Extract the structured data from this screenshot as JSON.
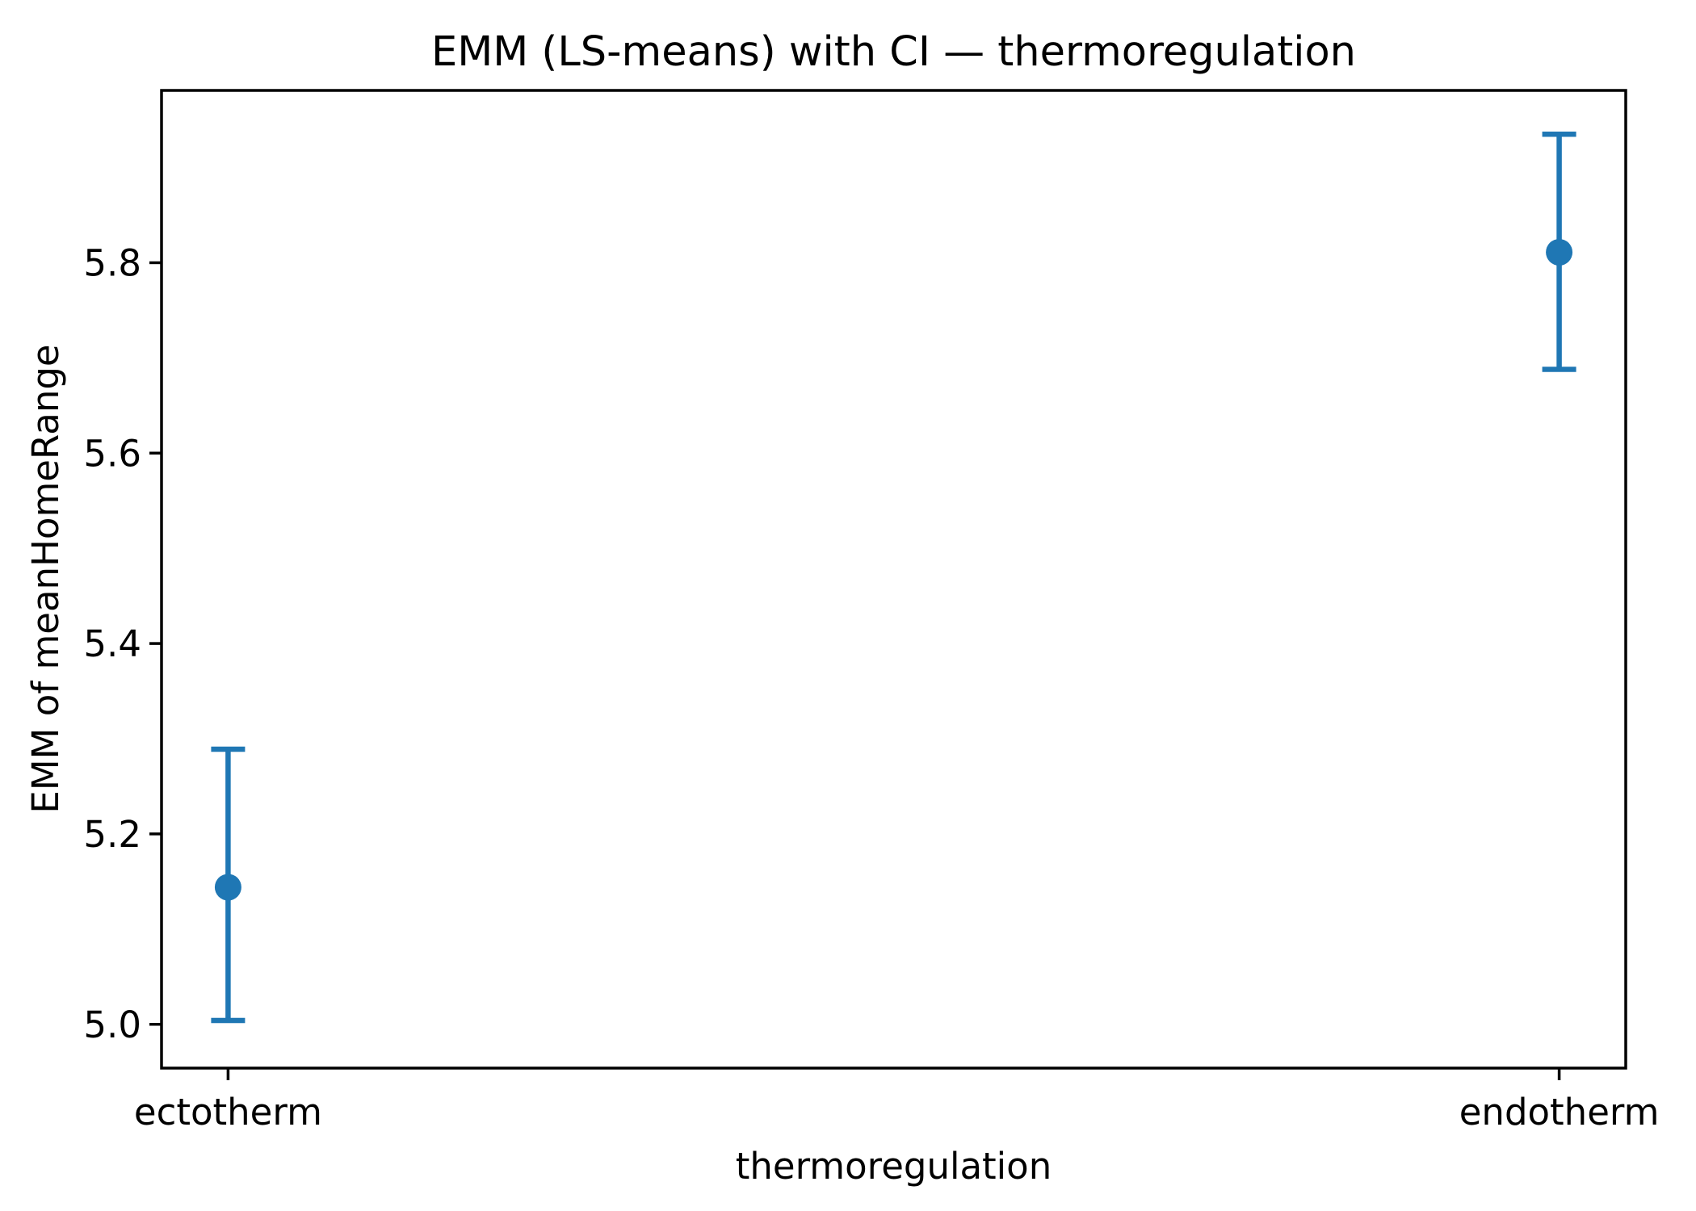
{
  "chart_data": {
    "type": "scatter",
    "subtype": "errorbar-point-estimates",
    "title": "EMM (LS-means) with CI — thermoregulation",
    "xlabel": "thermoregulation",
    "ylabel": "EMM of meanHomeRange",
    "categories": [
      "ectotherm",
      "endotherm"
    ],
    "x_positions": [
      0,
      1
    ],
    "series": [
      {
        "name": "EMM",
        "means": [
          5.144,
          5.811
        ],
        "ci_low": [
          5.004,
          5.688
        ],
        "ci_high": [
          5.289,
          5.935
        ]
      }
    ],
    "y_ticks": [
      5.0,
      5.2,
      5.4,
      5.6,
      5.8
    ],
    "ylim": [
      4.954,
      5.981
    ],
    "xlim": [
      -0.05,
      1.05
    ],
    "grid": false,
    "legend": null,
    "marker_color": "#1f77b4",
    "axis_color": "#000000",
    "background_color": "#ffffff"
  }
}
